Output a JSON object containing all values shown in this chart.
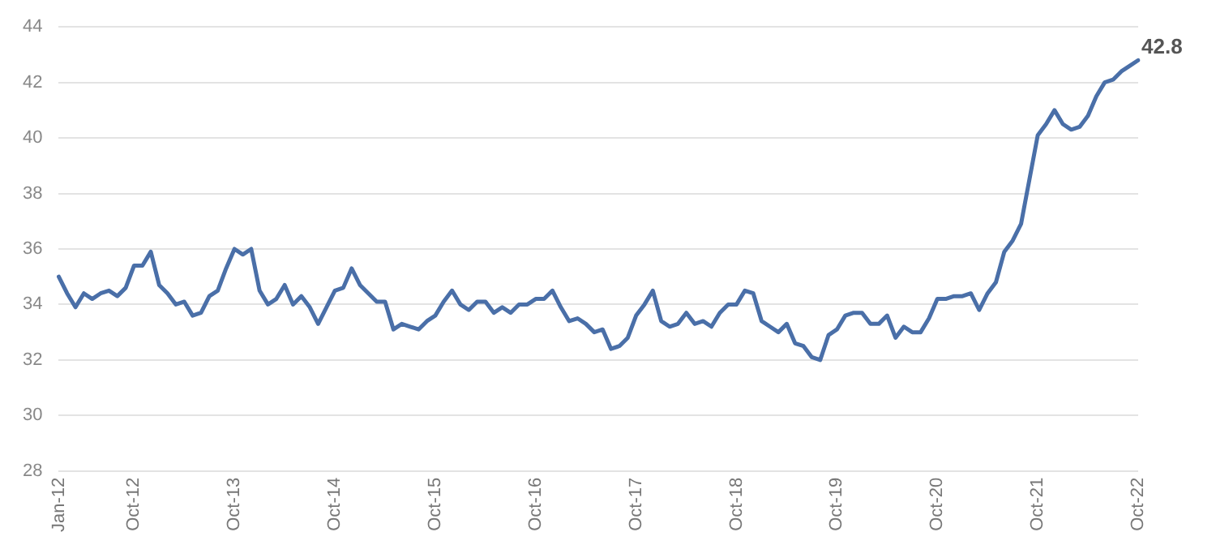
{
  "chart_data": {
    "type": "line",
    "categories": [
      "Jan-12",
      null,
      null,
      null,
      null,
      null,
      null,
      null,
      null,
      "Oct-12",
      null,
      null,
      null,
      null,
      null,
      null,
      null,
      null,
      null,
      null,
      null,
      "Oct-13",
      null,
      null,
      null,
      null,
      null,
      null,
      null,
      null,
      null,
      null,
      null,
      "Oct-14",
      null,
      null,
      null,
      null,
      null,
      null,
      null,
      null,
      null,
      null,
      null,
      "Oct-15",
      null,
      null,
      null,
      null,
      null,
      null,
      null,
      null,
      null,
      null,
      null,
      "Oct-16",
      null,
      null,
      null,
      null,
      null,
      null,
      null,
      null,
      null,
      null,
      null,
      "Oct-17",
      null,
      null,
      null,
      null,
      null,
      null,
      null,
      null,
      null,
      null,
      null,
      "Oct-18",
      null,
      null,
      null,
      null,
      null,
      null,
      null,
      null,
      null,
      null,
      null,
      "Oct-19",
      null,
      null,
      null,
      null,
      null,
      null,
      null,
      null,
      null,
      null,
      null,
      "Oct-20",
      null,
      null,
      null,
      null,
      null,
      null,
      null,
      null,
      null,
      null,
      null,
      "Oct-21",
      null,
      null,
      null,
      null,
      null,
      null,
      null,
      null,
      null,
      null,
      null,
      "Oct-22"
    ],
    "series": [
      {
        "color": "#4a6fa8",
        "values": [
          35.0,
          34.4,
          33.9,
          34.4,
          34.2,
          34.4,
          34.5,
          34.3,
          34.6,
          35.4,
          35.4,
          35.9,
          34.7,
          34.4,
          34.0,
          34.1,
          33.6,
          33.7,
          34.3,
          34.5,
          35.3,
          36.0,
          35.8,
          36.0,
          34.5,
          34.0,
          34.2,
          34.7,
          34.0,
          34.3,
          33.9,
          33.3,
          33.9,
          34.5,
          34.6,
          35.3,
          34.7,
          34.4,
          34.1,
          34.1,
          33.1,
          33.3,
          33.2,
          33.1,
          33.4,
          33.6,
          34.1,
          34.5,
          34.0,
          33.8,
          34.1,
          34.1,
          33.7,
          33.9,
          33.7,
          34.0,
          34.0,
          34.2,
          34.2,
          34.5,
          33.9,
          33.4,
          33.5,
          33.3,
          33.0,
          33.1,
          32.4,
          32.5,
          32.8,
          33.6,
          34.0,
          34.5,
          33.4,
          33.2,
          33.3,
          33.7,
          33.3,
          33.4,
          33.2,
          33.7,
          34.0,
          34.0,
          34.5,
          34.4,
          33.4,
          33.2,
          33.0,
          33.3,
          32.6,
          32.5,
          32.1,
          32.0,
          32.9,
          33.1,
          33.6,
          33.7,
          33.7,
          33.3,
          33.3,
          33.6,
          32.8,
          33.2,
          33.0,
          33.0,
          33.5,
          34.2,
          34.2,
          34.3,
          34.3,
          34.4,
          33.8,
          34.4,
          34.8,
          35.9,
          36.3,
          36.9,
          38.5,
          40.1,
          40.5,
          41.0,
          40.5,
          40.3,
          40.4,
          40.8,
          41.5,
          42.0,
          42.1,
          42.4,
          42.6,
          42.8
        ],
        "value_labels": [
          null,
          null,
          null,
          null,
          null,
          null,
          null,
          null,
          null,
          null,
          null,
          null,
          null,
          null,
          null,
          null,
          null,
          null,
          null,
          null,
          null,
          null,
          null,
          null,
          null,
          null,
          null,
          null,
          null,
          null,
          null,
          null,
          null,
          null,
          null,
          null,
          null,
          null,
          null,
          null,
          null,
          null,
          null,
          null,
          null,
          null,
          null,
          null,
          null,
          null,
          null,
          null,
          null,
          null,
          null,
          null,
          null,
          null,
          null,
          null,
          null,
          null,
          null,
          null,
          null,
          null,
          null,
          null,
          null,
          null,
          null,
          null,
          null,
          null,
          null,
          null,
          null,
          null,
          null,
          null,
          null,
          null,
          null,
          null,
          null,
          null,
          null,
          null,
          null,
          null,
          null,
          null,
          null,
          null,
          null,
          null,
          null,
          null,
          null,
          null,
          null,
          null,
          null,
          null,
          null,
          null,
          null,
          null,
          null,
          null,
          null,
          null,
          null,
          null,
          null,
          null,
          null,
          null,
          null,
          null,
          null,
          null,
          null,
          null,
          null,
          null,
          null,
          null,
          null,
          "42.8"
        ]
      }
    ],
    "ylim": [
      28,
      44
    ],
    "yticks": [
      28,
      30,
      32,
      34,
      36,
      38,
      40,
      42,
      44
    ],
    "grid": "y",
    "marker": "none",
    "line_style": "solid"
  }
}
